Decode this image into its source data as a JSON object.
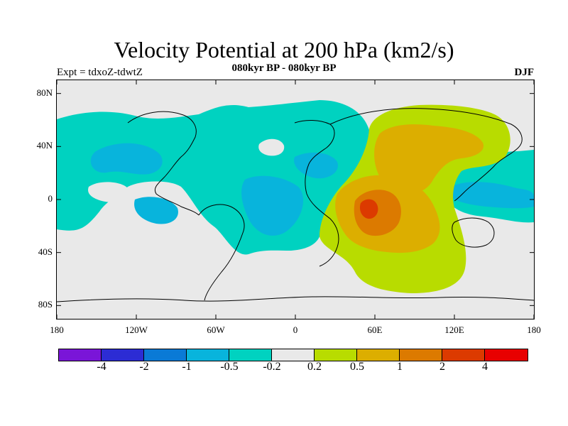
{
  "header": {
    "title": "Velocity Potential at 200 hPa (km2/s)",
    "subtitle": "080kyr BP - 080kyr BP",
    "left_label": "Expt = tdxoZ-tdwtZ",
    "right_label": "DJF"
  },
  "map": {
    "projection": "cylindrical-equidistant",
    "lon_range": [
      -180,
      180
    ],
    "lat_range": [
      -90,
      90
    ],
    "lat_ticks": [
      {
        "value": 80,
        "label": "80N"
      },
      {
        "value": 40,
        "label": "40N"
      },
      {
        "value": 0,
        "label": "0"
      },
      {
        "value": -40,
        "label": "40S"
      },
      {
        "value": -80,
        "label": "80S"
      }
    ],
    "lon_ticks": [
      {
        "value": -180,
        "label": "180"
      },
      {
        "value": -120,
        "label": "120W"
      },
      {
        "value": -60,
        "label": "60W"
      },
      {
        "value": 0,
        "label": "0"
      },
      {
        "value": 60,
        "label": "60E"
      },
      {
        "value": 120,
        "label": "120E"
      },
      {
        "value": 180,
        "label": "180"
      }
    ],
    "background_color": "#e9e9e9",
    "coastline_color": "#000000"
  },
  "colorbar": {
    "colors": [
      "#7a15d8",
      "#2c2cd4",
      "#0a7ad6",
      "#08b4dc",
      "#00d2c0",
      "#e9e9e9",
      "#b8dc00",
      "#dcae00",
      "#dc7a00",
      "#dc3a00",
      "#e80000"
    ],
    "labels": [
      "-4",
      "-2",
      "-1",
      "-0.5",
      "-0.2",
      "0.2",
      "0.5",
      "1",
      "2",
      "4"
    ]
  }
}
